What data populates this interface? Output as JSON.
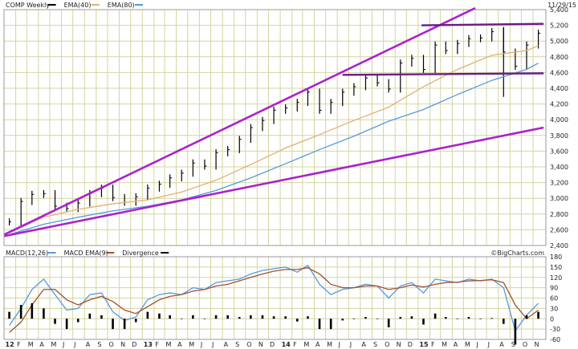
{
  "price_panel": {
    "legend": [
      {
        "label": "COMP Weekly",
        "color": "#000000",
        "style": "bar"
      },
      {
        "label": "EMA(40)",
        "color": "#e0b070",
        "style": "line"
      },
      {
        "label": "EMA(80)",
        "color": "#5599dd",
        "style": "line"
      }
    ],
    "date_label": "11/29/15"
  },
  "macd_panel": {
    "legend": [
      {
        "label": "MACD(12,26)",
        "color": "#5599dd",
        "style": "line"
      },
      {
        "label": "MACD EMA(9)",
        "color": "#a0522d",
        "style": "line"
      },
      {
        "label": "Divergence",
        "color": "#000000",
        "style": "bar"
      }
    ],
    "credit": "©BigCharts.com"
  },
  "x_axis": {
    "months": [
      "12",
      "F",
      "M",
      "A",
      "M",
      "J",
      "J",
      "A",
      "S",
      "O",
      "N",
      "D",
      "13",
      "F",
      "M",
      "A",
      "M",
      "J",
      "J",
      "A",
      "S",
      "O",
      "N",
      "D",
      "14",
      "F",
      "M",
      "A",
      "M",
      "J",
      "J",
      "A",
      "S",
      "O",
      "N",
      "D",
      "15",
      "F",
      "M",
      "A",
      "M",
      "J",
      "J",
      "A",
      "S",
      "O",
      "N"
    ]
  },
  "colors": {
    "trendline": "#aa22cc",
    "resistance": "#6a1a8a",
    "grid": "#d4d4a0",
    "frame": "#999999",
    "background": "#ffffff",
    "text": "#222222"
  },
  "chart_data": [
    {
      "type": "line",
      "panel": "price",
      "title": "COMP Weekly",
      "x_range": [
        "2012-01",
        "2015-11-29"
      ],
      "ylim": [
        2400,
        5400
      ],
      "y_ticks": [
        2400,
        2600,
        2800,
        3000,
        3200,
        3400,
        3600,
        3800,
        4000,
        4200,
        4400,
        4600,
        4800,
        5000,
        5200,
        5400
      ],
      "y_tick_labels": [
        "2,400",
        "2,600",
        "2,800",
        "3,000",
        "3,200",
        "3,400",
        "3,600",
        "3,800",
        "4,000",
        "4,200",
        "4,400",
        "4,600",
        "4,800",
        "5,000",
        "5,200",
        "5,400"
      ],
      "grid": true,
      "series": [
        {
          "name": "COMP Weekly",
          "style": "ohlc-bar",
          "x": [
            "2012-01",
            "2012-02",
            "2012-03",
            "2012-04",
            "2012-05",
            "2012-06",
            "2012-07",
            "2012-08",
            "2012-09",
            "2012-10",
            "2012-11",
            "2012-12",
            "2013-01",
            "2013-02",
            "2013-03",
            "2013-04",
            "2013-05",
            "2013-06",
            "2013-07",
            "2013-08",
            "2013-09",
            "2013-10",
            "2013-11",
            "2013-12",
            "2014-01",
            "2014-02",
            "2014-03",
            "2014-04",
            "2014-05",
            "2014-06",
            "2014-07",
            "2014-08",
            "2014-09",
            "2014-10",
            "2014-11",
            "2014-12",
            "2015-01",
            "2015-02",
            "2015-03",
            "2015-04",
            "2015-05",
            "2015-06",
            "2015-07",
            "2015-08",
            "2015-09",
            "2015-10",
            "2015-11"
          ],
          "values": [
            2700,
            2960,
            3050,
            3060,
            2900,
            2870,
            2940,
            3060,
            3130,
            3010,
            2950,
            3020,
            3130,
            3180,
            3260,
            3320,
            3450,
            3410,
            3580,
            3620,
            3750,
            3900,
            3990,
            4120,
            4150,
            4220,
            4350,
            4120,
            4220,
            4350,
            4420,
            4530,
            4470,
            4390,
            4720,
            4780,
            4640,
            4950,
            4880,
            4970,
            5030,
            5040,
            5120,
            4860,
            4680,
            4950,
            5100
          ],
          "ranges": [
            {
              "x": "2015-08",
              "low": 4290,
              "high": 5180
            }
          ]
        },
        {
          "name": "EMA(40)",
          "style": "line",
          "x": [
            "2012-01",
            "2012-04",
            "2012-07",
            "2012-10",
            "2013-01",
            "2013-04",
            "2013-07",
            "2013-10",
            "2014-01",
            "2014-04",
            "2014-07",
            "2014-10",
            "2015-01",
            "2015-04",
            "2015-07",
            "2015-10",
            "2015-11"
          ],
          "values": [
            2560,
            2760,
            2860,
            2930,
            2980,
            3080,
            3230,
            3430,
            3640,
            3810,
            3990,
            4160,
            4420,
            4640,
            4820,
            4880,
            4940
          ]
        },
        {
          "name": "EMA(80)",
          "style": "line",
          "x": [
            "2012-01",
            "2012-04",
            "2012-07",
            "2012-10",
            "2013-01",
            "2013-04",
            "2013-07",
            "2013-10",
            "2014-01",
            "2014-04",
            "2014-07",
            "2014-10",
            "2015-01",
            "2015-04",
            "2015-07",
            "2015-10",
            "2015-11"
          ],
          "values": [
            2540,
            2670,
            2760,
            2840,
            2900,
            2980,
            3100,
            3260,
            3440,
            3620,
            3790,
            3980,
            4130,
            4320,
            4500,
            4640,
            4720
          ]
        },
        {
          "name": "Upper trend line",
          "style": "annotation-line",
          "x": [
            "2012-01-02",
            "2015-06-01"
          ],
          "values": [
            2540,
            5420
          ]
        },
        {
          "name": "Lower trend line",
          "style": "annotation-line",
          "x": [
            "2012-01-02",
            "2015-11-29"
          ],
          "values": [
            2520,
            3900
          ]
        },
        {
          "name": "Resistance 5,200",
          "style": "annotation-line",
          "x": [
            "2015-01-10",
            "2015-11-29"
          ],
          "values": [
            5200,
            5220
          ]
        },
        {
          "name": "Support 4,600",
          "style": "annotation-line",
          "x": [
            "2014-06-15",
            "2015-11-29"
          ],
          "values": [
            4570,
            4590
          ]
        }
      ]
    },
    {
      "type": "line",
      "panel": "macd",
      "title": "MACD(12,26)",
      "ylim": [
        -60,
        180
      ],
      "y_ticks": [
        -60,
        -30,
        0,
        30,
        60,
        90,
        120,
        150,
        180
      ],
      "y_tick_labels": [
        "-60",
        "-30",
        "0",
        "30",
        "60",
        "90",
        "120",
        "150",
        "180"
      ],
      "grid": true,
      "series": [
        {
          "name": "MACD(12,26)",
          "style": "line",
          "x": [
            "2012-01",
            "2012-02",
            "2012-03",
            "2012-04",
            "2012-05",
            "2012-06",
            "2012-07",
            "2012-08",
            "2012-09",
            "2012-10",
            "2012-11",
            "2012-12",
            "2013-01",
            "2013-02",
            "2013-03",
            "2013-04",
            "2013-05",
            "2013-06",
            "2013-07",
            "2013-08",
            "2013-09",
            "2013-10",
            "2013-11",
            "2013-12",
            "2014-01",
            "2014-02",
            "2014-03",
            "2014-04",
            "2014-05",
            "2014-06",
            "2014-07",
            "2014-08",
            "2014-09",
            "2014-10",
            "2014-11",
            "2014-12",
            "2015-01",
            "2015-02",
            "2015-03",
            "2015-04",
            "2015-05",
            "2015-06",
            "2015-07",
            "2015-08",
            "2015-09",
            "2015-10",
            "2015-11"
          ],
          "values": [
            -20,
            30,
            85,
            115,
            70,
            25,
            30,
            70,
            75,
            20,
            -5,
            5,
            55,
            70,
            75,
            70,
            90,
            85,
            105,
            110,
            115,
            130,
            140,
            145,
            150,
            135,
            155,
            100,
            70,
            85,
            90,
            100,
            95,
            60,
            95,
            105,
            75,
            115,
            110,
            105,
            115,
            110,
            115,
            90,
            -35,
            10,
            45
          ]
        },
        {
          "name": "MACD EMA(9)",
          "style": "line",
          "x": [
            "2012-01",
            "2012-02",
            "2012-03",
            "2012-04",
            "2012-05",
            "2012-06",
            "2012-07",
            "2012-08",
            "2012-09",
            "2012-10",
            "2012-11",
            "2012-12",
            "2013-01",
            "2013-02",
            "2013-03",
            "2013-04",
            "2013-05",
            "2013-06",
            "2013-07",
            "2013-08",
            "2013-09",
            "2013-10",
            "2013-11",
            "2013-12",
            "2014-01",
            "2014-02",
            "2014-03",
            "2014-04",
            "2014-05",
            "2014-06",
            "2014-07",
            "2014-08",
            "2014-09",
            "2014-10",
            "2014-11",
            "2014-12",
            "2015-01",
            "2015-02",
            "2015-03",
            "2015-04",
            "2015-05",
            "2015-06",
            "2015-07",
            "2015-08",
            "2015-09",
            "2015-10",
            "2015-11"
          ],
          "values": [
            -40,
            -10,
            40,
            85,
            85,
            55,
            40,
            55,
            65,
            50,
            25,
            15,
            35,
            55,
            65,
            70,
            80,
            85,
            95,
            100,
            110,
            120,
            130,
            138,
            143,
            143,
            148,
            130,
            100,
            90,
            90,
            95,
            95,
            85,
            90,
            98,
            92,
            100,
            105,
            106,
            110,
            111,
            113,
            105,
            40,
            0,
            25
          ]
        },
        {
          "name": "Divergence",
          "style": "histogram",
          "x": [
            "2012-01",
            "2012-02",
            "2012-03",
            "2012-04",
            "2012-05",
            "2012-06",
            "2012-07",
            "2012-08",
            "2012-09",
            "2012-10",
            "2012-11",
            "2012-12",
            "2013-01",
            "2013-02",
            "2013-03",
            "2013-04",
            "2013-05",
            "2013-06",
            "2013-07",
            "2013-08",
            "2013-09",
            "2013-10",
            "2013-11",
            "2013-12",
            "2014-01",
            "2014-02",
            "2014-03",
            "2014-04",
            "2014-05",
            "2014-06",
            "2014-07",
            "2014-08",
            "2014-09",
            "2014-10",
            "2014-11",
            "2014-12",
            "2015-01",
            "2015-02",
            "2015-03",
            "2015-04",
            "2015-05",
            "2015-06",
            "2015-07",
            "2015-08",
            "2015-09",
            "2015-10",
            "2015-11"
          ],
          "values": [
            20,
            40,
            45,
            30,
            -15,
            -30,
            -10,
            15,
            10,
            -30,
            -30,
            -10,
            20,
            15,
            10,
            0,
            10,
            0,
            10,
            10,
            5,
            10,
            10,
            7,
            7,
            -8,
            7,
            -30,
            -30,
            -5,
            0,
            5,
            0,
            -25,
            5,
            7,
            -17,
            15,
            5,
            -1,
            5,
            -1,
            2,
            -15,
            -75,
            10,
            20
          ]
        }
      ]
    }
  ]
}
